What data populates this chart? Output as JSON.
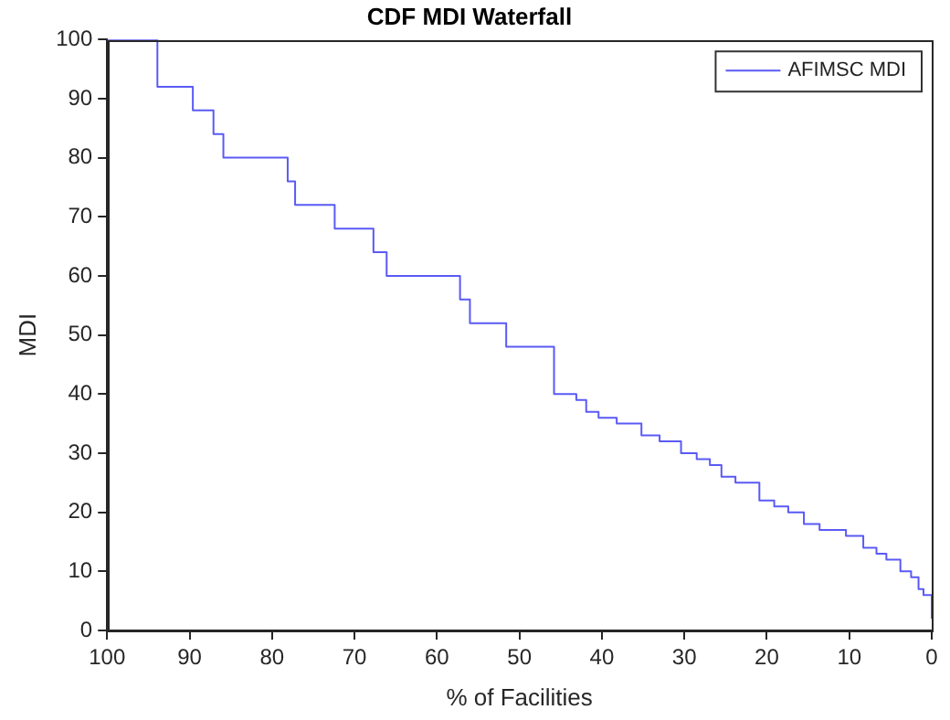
{
  "chart_data": {
    "type": "step",
    "title": "CDF MDI Waterfall",
    "xlabel": "% of Facilities",
    "ylabel": "MDI",
    "x": [
      100,
      93.9,
      89.6,
      87.1,
      85.9,
      78.1,
      77.2,
      72.4,
      67.7,
      66.1,
      57.2,
      56.0,
      51.6,
      45.8,
      43.1,
      41.9,
      40.4,
      38.2,
      35.2,
      33.0,
      30.4,
      28.5,
      26.9,
      25.5,
      23.8,
      20.9,
      19.1,
      17.4,
      15.5,
      13.6,
      10.4,
      8.3,
      6.7,
      5.5,
      3.8,
      2.5,
      1.6,
      1.0,
      0
    ],
    "series": [
      {
        "name": "AFIMSC MDI",
        "color": "#5a5af5",
        "values": [
          100,
          92,
          88,
          84,
          80,
          76,
          72,
          68,
          64,
          60,
          56,
          52,
          48,
          40,
          39,
          37,
          36,
          35,
          33,
          32,
          30,
          29,
          28,
          26,
          25,
          22,
          21,
          20,
          18,
          17,
          16,
          14,
          13,
          12,
          10,
          9,
          7,
          6,
          2
        ]
      }
    ],
    "xlim": [
      100,
      0
    ],
    "xticks": [
      100,
      90,
      80,
      70,
      60,
      50,
      40,
      30,
      20,
      10,
      0
    ],
    "ylim": [
      0,
      100
    ],
    "yticks": [
      0,
      10,
      20,
      30,
      40,
      50,
      60,
      70,
      80,
      90,
      100
    ],
    "grid": false,
    "legend": "top right",
    "marker": "none",
    "line_style": "solid"
  }
}
